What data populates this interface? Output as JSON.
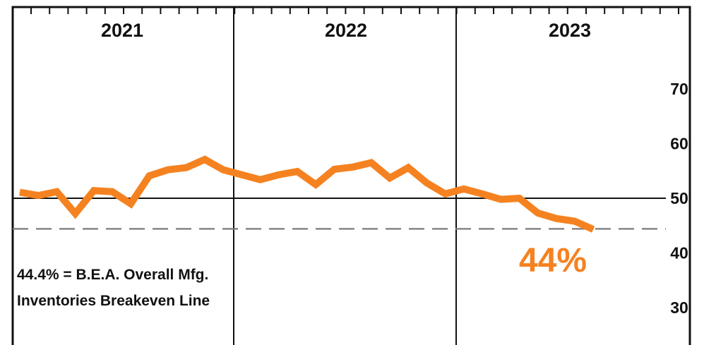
{
  "chart_data": {
    "type": "line",
    "title": "",
    "xlabel": "",
    "ylabel": "",
    "x_periods": [
      "2021",
      "2022",
      "2023"
    ],
    "yticks": [
      "70",
      "60",
      "50",
      "40",
      "30"
    ],
    "ylim": [
      25,
      81
    ],
    "grid": false,
    "series": [
      {
        "color": "#f58220",
        "x": [
          "2021-01",
          "2021-02",
          "2021-03",
          "2021-04",
          "2021-05",
          "2021-06",
          "2021-07",
          "2021-08",
          "2021-09",
          "2021-10",
          "2021-11",
          "2021-12",
          "2022-01",
          "2022-02",
          "2022-03",
          "2022-04",
          "2022-05",
          "2022-06",
          "2022-07",
          "2022-08",
          "2022-09",
          "2022-10",
          "2022-11",
          "2022-12",
          "2023-01",
          "2023-02",
          "2023-03",
          "2023-04",
          "2023-05",
          "2023-06"
        ],
        "values": [
          51.1,
          50.5,
          51.2,
          47.2,
          51.4,
          51.2,
          49.0,
          54.1,
          55.2,
          55.6,
          57.1,
          55.2,
          54.3,
          53.4,
          54.3,
          54.9,
          52.5,
          55.3,
          55.7,
          56.5,
          53.7,
          55.6,
          52.8,
          50.8,
          51.7,
          50.8,
          49.8,
          50.0,
          47.3,
          46.3
        ]
      }
    ],
    "tail": {
      "x": [
        "2023-06",
        "2023-07",
        "2023-08"
      ],
      "values": [
        46.3,
        45.8,
        44.3
      ]
    },
    "reference_lines": [
      {
        "value": 50,
        "style": "solid",
        "color": "#111111"
      },
      {
        "value": 44.4,
        "style": "dashed",
        "color": "#7a7a7a"
      }
    ],
    "annotations": [
      {
        "text": "44%",
        "color": "#f58220"
      }
    ],
    "note_lines": [
      "44.4% = B.E.A. Overall Mfg.",
      "Inventories Breakeven Line"
    ]
  }
}
